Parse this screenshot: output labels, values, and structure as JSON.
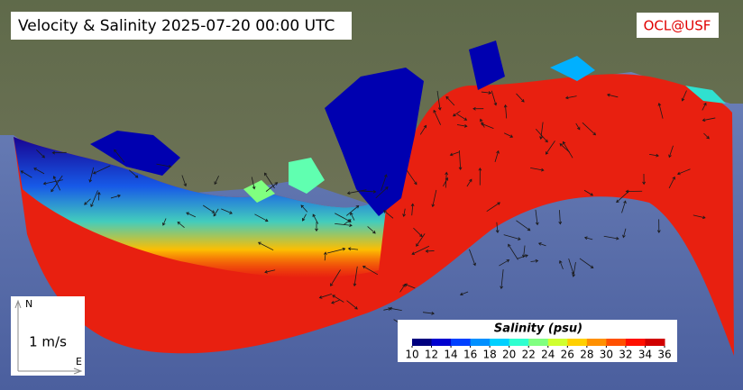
{
  "title": "Velocity & Salinity 2025-07-20 00:00 UTC",
  "credit": "OCL@USF",
  "legend": {
    "title": "Salinity (psu)",
    "ticks": [
      10,
      12,
      14,
      16,
      18,
      20,
      22,
      24,
      26,
      28,
      30,
      32,
      34,
      36
    ],
    "colors": [
      "#00007f",
      "#0000d0",
      "#0040ff",
      "#0090ff",
      "#00d0ff",
      "#30ffd0",
      "#80ff80",
      "#d0ff30",
      "#ffd000",
      "#ff9000",
      "#ff5000",
      "#ff1000",
      "#d00000"
    ]
  },
  "scale": {
    "label": "1 m/s",
    "north": "N",
    "east": "E"
  }
}
